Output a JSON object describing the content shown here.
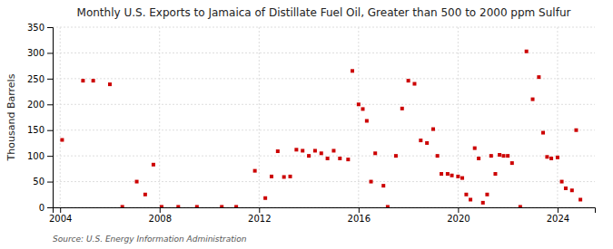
{
  "chart_data": {
    "type": "scatter",
    "title": "Monthly U.S. Exports to Jamaica of Distillate Fuel Oil, Greater than 500 to 2000 ppm Sulfur",
    "ylabel": "Thousand Barrels",
    "source": "Source: U.S. Energy Information Administration",
    "color": "#cc0000",
    "marker": "square",
    "grid": true,
    "xlim": [
      2003.7,
      2025.5
    ],
    "ylim": [
      0,
      350
    ],
    "xticks": [
      2004,
      2008,
      2012,
      2016,
      2020,
      2024
    ],
    "yticks": [
      0,
      50,
      100,
      150,
      200,
      250,
      300,
      350
    ],
    "x": [
      2004.08,
      2004.92,
      2005.33,
      2006.0,
      2006.5,
      2007.08,
      2007.42,
      2007.75,
      2008.08,
      2008.75,
      2009.5,
      2010.5,
      2011.08,
      2011.83,
      2012.25,
      2012.5,
      2012.75,
      2013.0,
      2013.25,
      2013.5,
      2013.75,
      2014.0,
      2014.25,
      2014.5,
      2014.75,
      2015.0,
      2015.25,
      2015.58,
      2015.75,
      2016.0,
      2016.17,
      2016.33,
      2016.5,
      2016.67,
      2017.0,
      2017.17,
      2017.5,
      2017.75,
      2018.0,
      2018.25,
      2018.5,
      2018.75,
      2019.0,
      2019.17,
      2019.33,
      2019.58,
      2019.75,
      2020.0,
      2020.17,
      2020.33,
      2020.5,
      2020.67,
      2020.83,
      2021.0,
      2021.17,
      2021.33,
      2021.5,
      2021.67,
      2021.83,
      2022.0,
      2022.17,
      2022.5,
      2022.75,
      2023.0,
      2023.25,
      2023.42,
      2023.58,
      2023.75,
      2024.0,
      2024.17,
      2024.33,
      2024.58,
      2024.75,
      2024.92
    ],
    "values": [
      131,
      246,
      246,
      239,
      1,
      50,
      25,
      83,
      1,
      1,
      1,
      1,
      1,
      71,
      18,
      60,
      109,
      59,
      60,
      112,
      110,
      100,
      110,
      105,
      95,
      110,
      95,
      93,
      265,
      200,
      191,
      168,
      50,
      105,
      42,
      1,
      100,
      192,
      246,
      240,
      130,
      125,
      152,
      100,
      65,
      65,
      62,
      60,
      57,
      25,
      15,
      115,
      95,
      9,
      25,
      100,
      65,
      102,
      100,
      100,
      86,
      1,
      303,
      210,
      253,
      145,
      98,
      95,
      97,
      50,
      37,
      33,
      150,
      15
    ]
  }
}
